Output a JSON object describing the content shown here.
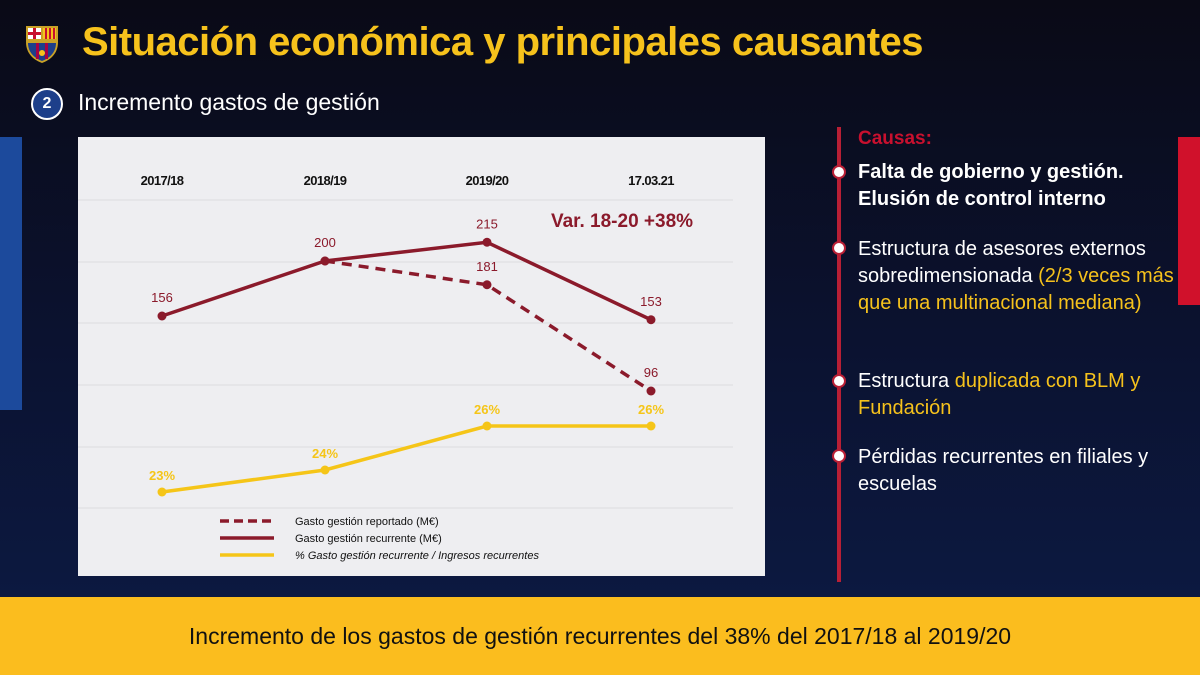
{
  "header": {
    "title": "Situación económica y principales causantes",
    "section_number": "2",
    "subtitle": "Incremento gastos de gestión"
  },
  "colors": {
    "title": "#f6c21c",
    "red": "#8b1a2b",
    "yellow": "#f5c518",
    "banner": "#fbbd1e"
  },
  "chart_data": {
    "type": "line",
    "categories": [
      "2017/18",
      "2018/19",
      "2019/20",
      "17.03.21"
    ],
    "series": [
      {
        "name": "Gasto gestión reportado (M€)",
        "values": [
          null,
          200,
          181,
          96
        ],
        "labels": [
          "",
          "",
          "181",
          "96"
        ],
        "style": "dashed",
        "color": "#8b1a2b"
      },
      {
        "name": "Gasto gestión recurrente (M€)",
        "values": [
          156,
          200,
          215,
          153
        ],
        "labels": [
          "156",
          "200",
          "215",
          "153"
        ],
        "style": "solid",
        "color": "#8b1a2b"
      },
      {
        "name": "% Gasto gestión recurrente / Ingresos recurrentes",
        "values": [
          23,
          24,
          26,
          26
        ],
        "labels": [
          "23%",
          "24%",
          "26%",
          "26%"
        ],
        "style": "solid",
        "color": "#f5c518"
      }
    ],
    "annotation": "Var. 18-20 +38%",
    "grid": true,
    "legend": "bottom"
  },
  "causes": {
    "heading": "Causas:",
    "items": [
      {
        "a": "Falta de gobierno y gestión. Elusión de control interno"
      },
      {
        "a": "Estructura de asesores externos sobredimensionada ",
        "b": "(2/3 veces más que una multinacional mediana)"
      },
      {
        "a": "Estructura ",
        "b": "duplicada con BLM y Fundación"
      },
      {
        "a": "Pérdidas recurrentes en filiales y escuelas"
      }
    ]
  },
  "banner": "Incremento de los gastos de gestión recurrentes del 38% del 2017/18 al 2019/20"
}
